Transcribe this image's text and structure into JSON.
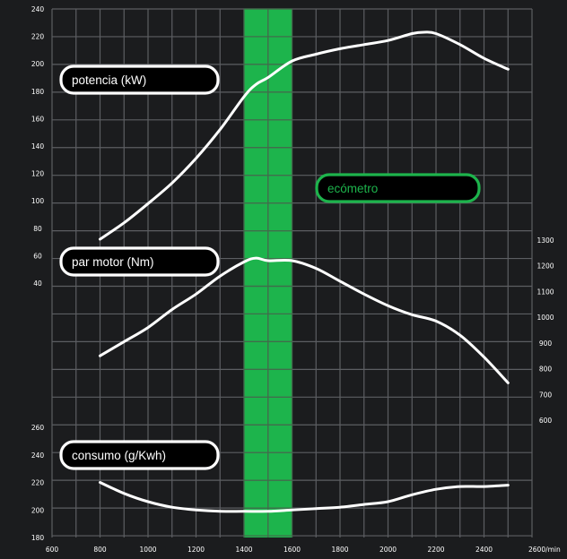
{
  "chart_data": {
    "type": "line",
    "x_axis": {
      "ticks": [
        "600",
        "800",
        "1000",
        "1200",
        "1400",
        "1600",
        "1800",
        "2000",
        "2200",
        "2400",
        "2600/min"
      ],
      "range": [
        600,
        2600
      ]
    },
    "left_axis_top": {
      "ticks": [
        "40",
        "60",
        "80",
        "100",
        "120",
        "140",
        "160",
        "180",
        "200",
        "220",
        "240"
      ],
      "range": [
        40,
        240
      ]
    },
    "right_axis": {
      "ticks": [
        "600",
        "700",
        "800",
        "900",
        "1000",
        "1100",
        "1200",
        "1300"
      ],
      "range": [
        600,
        1300
      ]
    },
    "left_axis_bottom": {
      "ticks": [
        "180",
        "200",
        "220",
        "240",
        "260"
      ],
      "range": [
        180,
        260
      ]
    },
    "highlight_band": {
      "label": "ecómetro",
      "x_range": [
        1400,
        1600
      ],
      "color": "#1db44c"
    },
    "series": [
      {
        "name": "potencia (kW)",
        "axis": "left_axis_top",
        "x": [
          800,
          900,
          1000,
          1100,
          1200,
          1300,
          1400,
          1450,
          1500,
          1600,
          1700,
          1800,
          1900,
          2000,
          2100,
          2150,
          2200,
          2300,
          2400,
          2500
        ],
        "values": [
          72,
          84,
          98,
          113,
          131,
          152,
          176,
          185,
          190,
          202,
          207,
          211,
          214,
          217,
          222,
          223,
          222,
          214,
          204,
          196
        ]
      },
      {
        "name": "par motor (Nm)",
        "axis": "right_axis",
        "x": [
          800,
          900,
          1000,
          1100,
          1200,
          1300,
          1400,
          1450,
          1500,
          1600,
          1700,
          1800,
          1900,
          2000,
          2100,
          2200,
          2300,
          2400,
          2500
        ],
        "values": [
          850,
          905,
          960,
          1030,
          1090,
          1160,
          1215,
          1230,
          1220,
          1220,
          1190,
          1140,
          1090,
          1045,
          1010,
          985,
          930,
          845,
          745
        ]
      },
      {
        "name": "consumo (g/Kwh)",
        "axis": "left_axis_bottom",
        "x": [
          800,
          900,
          1000,
          1100,
          1200,
          1300,
          1400,
          1500,
          1600,
          1700,
          1800,
          1900,
          2000,
          2100,
          2200,
          2300,
          2400,
          2500
        ],
        "values": [
          220,
          212,
          206,
          202,
          200,
          199,
          199,
          199,
          200,
          201,
          202,
          204,
          206,
          211,
          215,
          217,
          217,
          218
        ]
      }
    ],
    "grid": true,
    "colors": {
      "background": "#1b1c1e",
      "grid": "#5c5e62",
      "line": "#ffffff",
      "label_box": "#000000"
    }
  }
}
